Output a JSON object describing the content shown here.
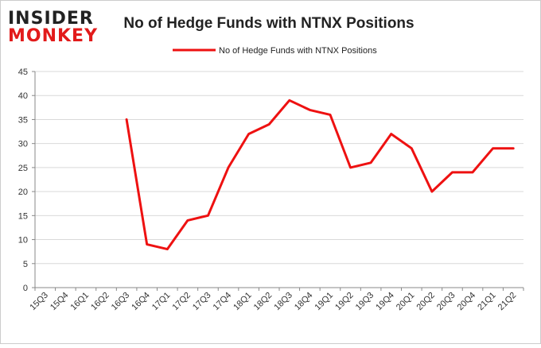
{
  "logo": {
    "line1": "INSIDER",
    "line2": "MONKEY",
    "color_top": "#222222",
    "color_bottom": "#e21b1b"
  },
  "chart_data": {
    "type": "line",
    "title": "No of Hedge Funds with NTNX Positions",
    "xlabel": "",
    "ylabel": "",
    "categories": [
      "15Q3",
      "15Q4",
      "16Q1",
      "16Q2",
      "16Q3",
      "16Q4",
      "17Q1",
      "17Q2",
      "17Q3",
      "17Q4",
      "18Q1",
      "18Q2",
      "18Q3",
      "18Q4",
      "19Q1",
      "19Q2",
      "19Q3",
      "19Q4",
      "20Q1",
      "20Q2",
      "20Q3",
      "20Q4",
      "21Q1",
      "21Q2"
    ],
    "series": [
      {
        "name": "No of Hedge Funds with NTNX  Positions",
        "color": "#ee1111",
        "values": [
          null,
          null,
          null,
          null,
          35,
          9,
          8,
          14,
          15,
          25,
          32,
          34,
          39,
          37,
          36,
          25,
          26,
          32,
          29,
          20,
          24,
          24,
          29,
          29
        ]
      }
    ],
    "ylim": [
      0,
      45
    ],
    "yticks": [
      0,
      5,
      10,
      15,
      20,
      25,
      30,
      35,
      40,
      45
    ],
    "grid": true,
    "legend_position": "top-center",
    "gridline_color": "#d9d9d9",
    "axis_color": "#888888"
  }
}
